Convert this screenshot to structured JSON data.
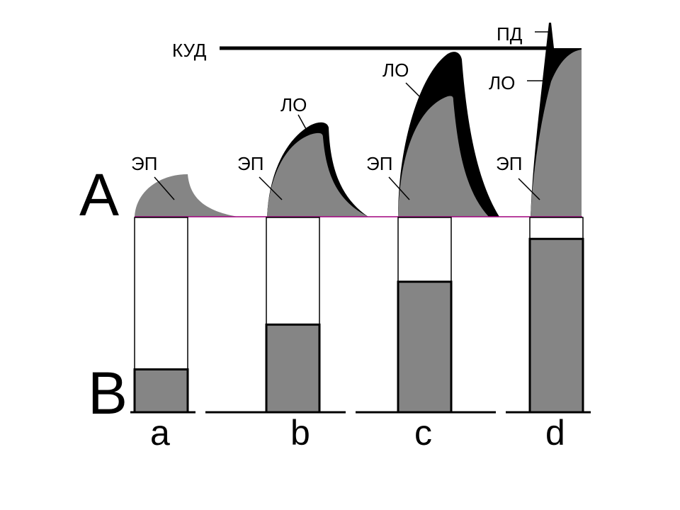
{
  "panel_labels": {
    "top": "А",
    "bottom": "В"
  },
  "threshold": {
    "label": "КУД"
  },
  "cases": [
    {
      "id": "a",
      "label": "a",
      "ep_label": "ЭП",
      "lo_label": "",
      "pd_label": "",
      "bar_level": 0.22
    },
    {
      "id": "b",
      "label": "b",
      "ep_label": "ЭП",
      "lo_label": "ЛО",
      "pd_label": "",
      "bar_level": 0.45
    },
    {
      "id": "c",
      "label": "c",
      "ep_label": "ЭП",
      "lo_label": "ЛО",
      "pd_label": "",
      "bar_level": 0.67
    },
    {
      "id": "d",
      "label": "d",
      "ep_label": "ЭП",
      "lo_label": "ЛО",
      "pd_label": "ПД",
      "bar_level": 0.89
    }
  ],
  "colors": {
    "gray_fill": "#858585",
    "black_fill": "#000000",
    "baseline": "#a0007f",
    "outline": "#000000",
    "background": "#ffffff"
  }
}
